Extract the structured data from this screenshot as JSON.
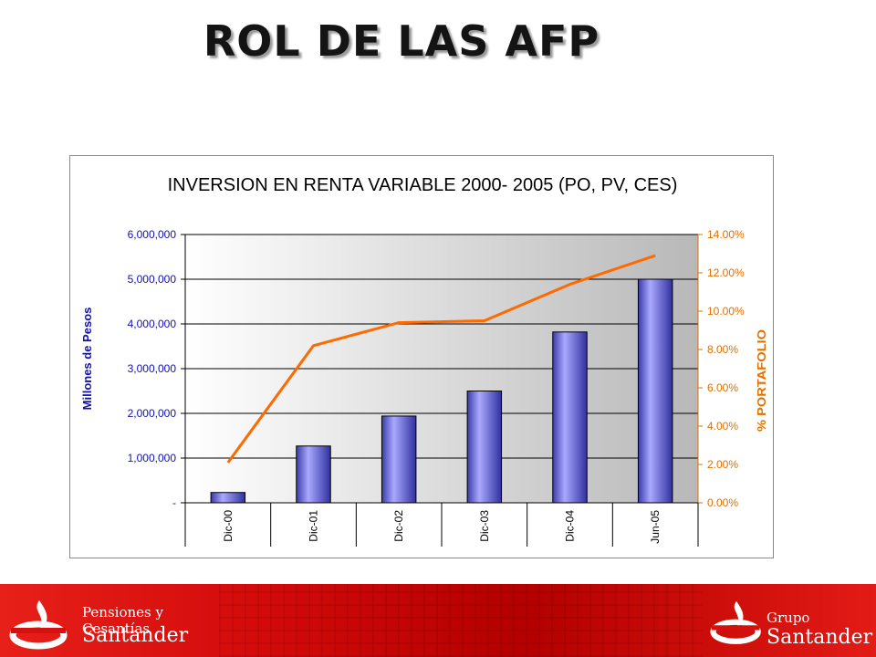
{
  "slide": {
    "title": "ROL DE LAS AFP"
  },
  "chart_data": {
    "type": "bar",
    "title": "INVERSION EN RENTA VARIABLE 2000- 2005 (PO, PV, CES)",
    "categories": [
      "Dic-00",
      "Dic-01",
      "Dic-02",
      "Dic-03",
      "Dic-04",
      "Jun-05"
    ],
    "ylabel": "Millones de Pesos",
    "y2label": "% PORTAFOLIO",
    "ylim": [
      0,
      6000000
    ],
    "y2lim": [
      0,
      0.14
    ],
    "yticks": [
      "-",
      "1,000,000",
      "2,000,000",
      "3,000,000",
      "4,000,000",
      "5,000,000",
      "6,000,000"
    ],
    "y2ticks": [
      "0.00%",
      "2.00%",
      "4.00%",
      "6.00%",
      "8.00%",
      "10.00%",
      "12.00%",
      "14.00%"
    ],
    "series": [
      {
        "type": "bar",
        "axis": "left",
        "values": [
          230000,
          1270000,
          1940000,
          2500000,
          3820000,
          5000000
        ],
        "color": "#7b7be8"
      },
      {
        "type": "line",
        "axis": "right",
        "values": [
          0.021,
          0.082,
          0.094,
          0.095,
          0.114,
          0.129
        ],
        "color": "#ff6a00"
      }
    ],
    "grid": true,
    "legend": "none",
    "colors": {
      "left_axis_label": "#1010b0",
      "right_axis": "#e07000",
      "plot_bg_from": "#ffffff",
      "plot_bg_to": "#b8b8b8"
    }
  },
  "footer": {
    "left_brand_line1": "Pensiones y Cesantías",
    "left_brand_line2": "Santander",
    "right_brand_line1": "Grupo",
    "right_brand_line2": "Santander",
    "colors": {
      "band": "#d20a0a"
    }
  }
}
